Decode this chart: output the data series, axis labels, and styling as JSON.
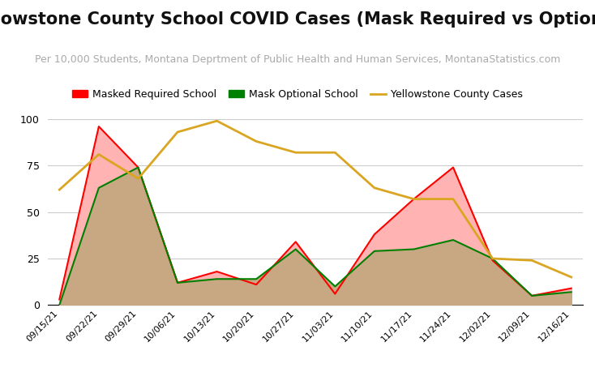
{
  "title": "Yellowstone County School COVID Cases (Mask Required vs Optional)",
  "subtitle": "Per 10,000 Students, Montana Deprtment of Public Health and Human Services, MontanaStatistics.com",
  "dates": [
    "09/15/21",
    "09/22/21",
    "09/29/21",
    "10/06/21",
    "10/13/21",
    "10/20/21",
    "10/27/21",
    "11/03/21",
    "11/10/21",
    "11/17/21",
    "11/24/21",
    "12/02/21",
    "12/09/21",
    "12/16/21"
  ],
  "mask_required": [
    3,
    96,
    74,
    12,
    18,
    11,
    34,
    6,
    38,
    57,
    74,
    24,
    5,
    9
  ],
  "mask_optional": [
    0,
    63,
    74,
    12,
    14,
    14,
    30,
    10,
    29,
    30,
    35,
    25,
    5,
    7
  ],
  "county_cases": [
    62,
    81,
    68,
    93,
    99,
    88,
    82,
    82,
    63,
    57,
    57,
    25,
    24,
    15
  ],
  "color_required": "#ff0000",
  "color_optional": "#008000",
  "color_county": "#DAA520",
  "fill_required": "#ffb3b3",
  "fill_optional": "#c8a882",
  "ylim": [
    0,
    100
  ],
  "yticks": [
    0,
    25,
    50,
    75,
    100
  ],
  "background_color": "#ffffff",
  "title_fontsize": 15,
  "subtitle_fontsize": 9,
  "legend_required": "Masked Required School",
  "legend_optional": "Mask Optional School",
  "legend_county": "Yellowstone County Cases"
}
